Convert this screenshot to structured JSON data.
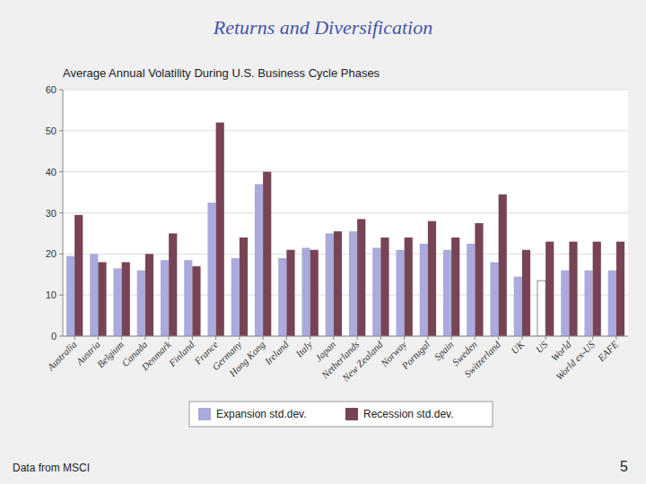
{
  "chart_data": {
    "type": "bar",
    "title": "Returns and Diversification",
    "subtitle": "Average Annual Volatility During U.S. Business Cycle Phases",
    "categories": [
      "Australia",
      "Austria",
      "Belgium",
      "Canada",
      "Denmark",
      "Finland",
      "France",
      "Germany",
      "Hong Kong",
      "Ireland",
      "Italy",
      "Japan",
      "Netherlands",
      "New Zealand",
      "Norway",
      "Portugal",
      "Spain",
      "Sweden",
      "Switzerland",
      "UK",
      "US",
      "World",
      "World ex-US",
      "EAFE"
    ],
    "series": [
      {
        "name": "Expansion std.dev.",
        "color": "#aaaadd",
        "colors": [
          "#aaaadd",
          "#aaaadd",
          "#aaaadd",
          "#aaaadd",
          "#aaaadd",
          "#aaaadd",
          "#aaaadd",
          "#aaaadd",
          "#aaaadd",
          "#aaaadd",
          "#aaaadd",
          "#aaaadd",
          "#aaaadd",
          "#aaaadd",
          "#aaaadd",
          "#aaaadd",
          "#aaaadd",
          "#aaaadd",
          "#aaaadd",
          "#aaaadd",
          "#ffffff",
          "#aaaadd",
          "#aaaadd",
          "#aaaadd"
        ],
        "values": [
          19.5,
          20.0,
          16.5,
          16.0,
          18.5,
          18.5,
          32.5,
          19.0,
          37.0,
          19.0,
          21.5,
          25.0,
          25.5,
          21.5,
          21.0,
          22.5,
          21.0,
          22.5,
          18.0,
          14.5,
          13.5,
          16.0,
          16.0,
          16.0
        ]
      },
      {
        "name": "Recession std.dev.",
        "color": "#774455",
        "values": [
          29.5,
          18.0,
          18.0,
          20.0,
          25.0,
          17.0,
          52.0,
          24.0,
          40.0,
          21.0,
          21.0,
          25.5,
          28.5,
          24.0,
          24.0,
          28.0,
          24.0,
          27.5,
          34.5,
          21.0,
          23.0,
          23.0,
          23.0,
          23.0
        ]
      }
    ],
    "ylim": [
      0,
      60
    ],
    "yticks": [
      0,
      10,
      20,
      30,
      40,
      50,
      60
    ],
    "grid": true,
    "legend": "bottom",
    "annotations": [
      "Data from MSCI",
      "5"
    ]
  }
}
